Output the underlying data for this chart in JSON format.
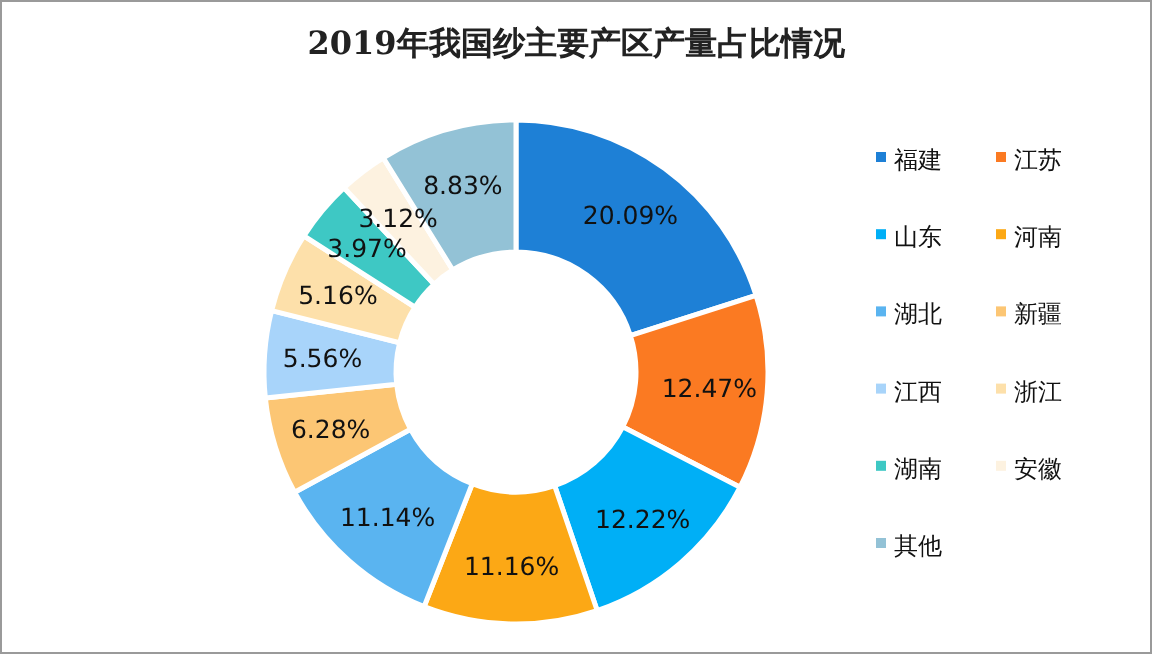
{
  "chart_data": {
    "type": "donut",
    "title": "2019年我国纱主要产区产量占比情况",
    "categories": [
      "福建",
      "江苏",
      "山东",
      "河南",
      "湖北",
      "新疆",
      "江西",
      "浙江",
      "湖南",
      "安徽",
      "其他"
    ],
    "values": [
      20.09,
      12.47,
      12.22,
      11.16,
      11.14,
      6.28,
      5.56,
      5.16,
      3.97,
      3.12,
      8.83
    ],
    "value_labels": [
      "20.09%",
      "12.47%",
      "12.22%",
      "11.16%",
      "11.14%",
      "6.28%",
      "5.56%",
      "5.16%",
      "3.97%",
      "3.12%",
      "8.83%"
    ],
    "colors": [
      "#1e80d6",
      "#fb7a22",
      "#00aff6",
      "#fca815",
      "#5ab4f0",
      "#fcc674",
      "#a8d4fa",
      "#fde0aa",
      "#3ec8c4",
      "#fdf2e0",
      "#93c2d6"
    ],
    "legend": "right"
  }
}
